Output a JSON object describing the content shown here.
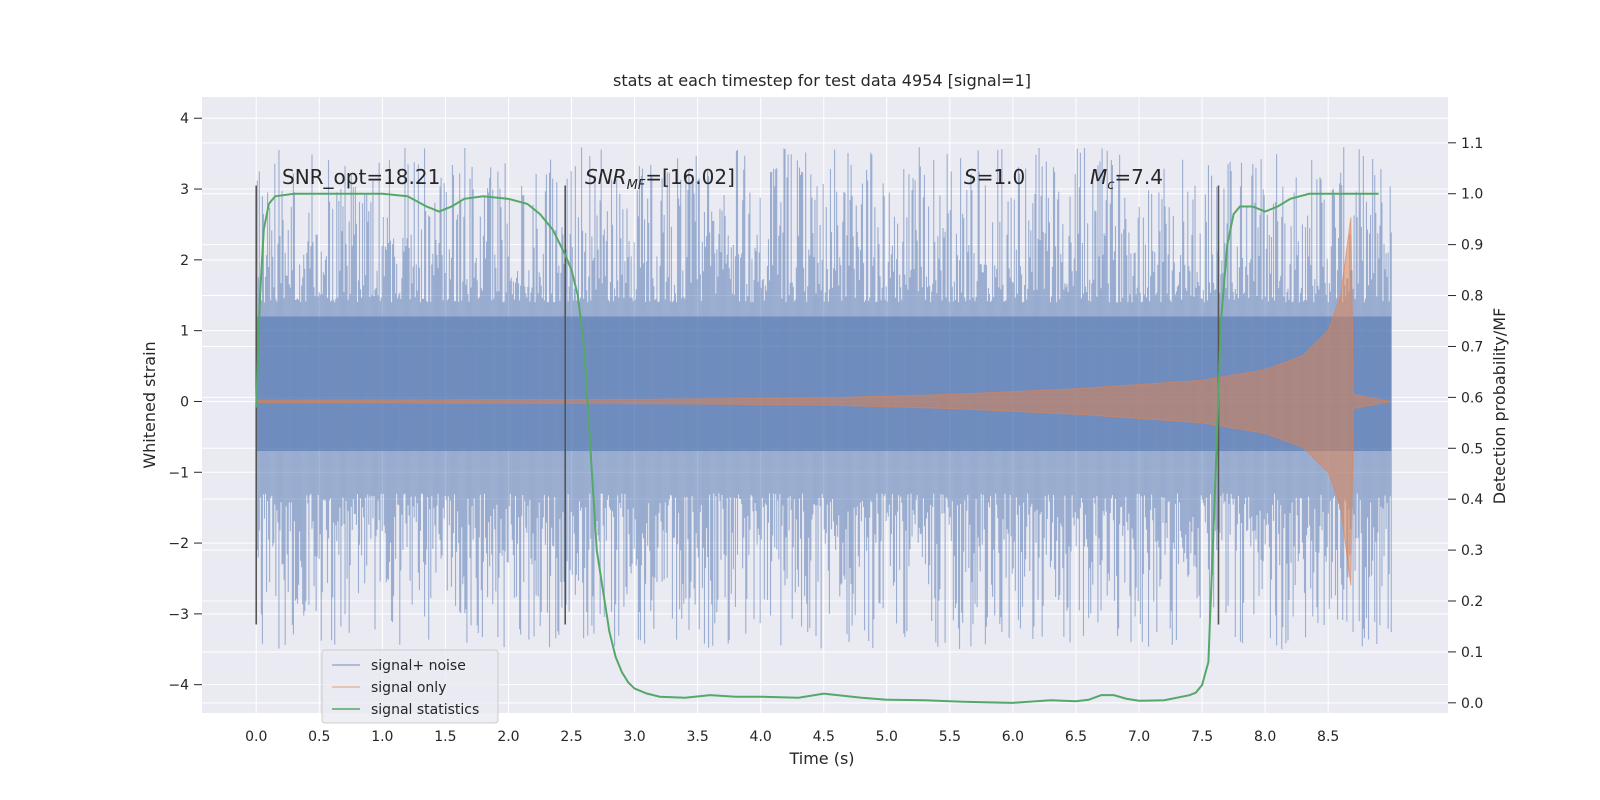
{
  "chart_data": {
    "type": "line",
    "title": "stats at each timestep for test data 4954 [signal=1]",
    "xlabel": "Time (s)",
    "ylabel": "Whitened strain",
    "ylabel_right": "Detection probability/MF",
    "xlim": [
      -0.43,
      9.45
    ],
    "ylim": [
      -4.4,
      4.3
    ],
    "ylim_right": [
      -0.02,
      1.19
    ],
    "grid": true,
    "legend_position": "lower-left",
    "x_ticks": [
      0.0,
      0.5,
      1.0,
      1.5,
      2.0,
      2.5,
      3.0,
      3.5,
      4.0,
      4.5,
      5.0,
      5.5,
      6.0,
      6.5,
      7.0,
      7.5,
      8.0,
      8.5
    ],
    "x_tick_labels": [
      "0.0",
      "0.5",
      "1.0",
      "1.5",
      "2.0",
      "2.5",
      "3.0",
      "3.5",
      "4.0",
      "4.5",
      "5.0",
      "5.5",
      "6.0",
      "6.5",
      "7.0",
      "7.5",
      "8.0",
      "8.5"
    ],
    "y_ticks": [
      4,
      3,
      2,
      1,
      0,
      -1,
      -2,
      -3,
      -4
    ],
    "y_tick_labels": [
      "4",
      "3",
      "2",
      "1",
      "0",
      "−1",
      "−2",
      "−3",
      "−4"
    ],
    "y_right_ticks": [
      1.1,
      1.0,
      0.9,
      0.8,
      0.7,
      0.6,
      0.5,
      0.4,
      0.3,
      0.2,
      0.1,
      0.0
    ],
    "y_right_tick_labels": [
      "1.1",
      "1.0",
      "0.9",
      "0.8",
      "0.7",
      "0.6",
      "0.5",
      "0.4",
      "0.3",
      "0.2",
      "0.1",
      "0.0"
    ],
    "annotations": {
      "snr_opt": "SNR_opt=18.21",
      "snr_mf_base": "SNR",
      "snr_mf_sub": "MF",
      "snr_mf_rest": "=[16.02]",
      "s_base": "S",
      "s_rest": "=1.0",
      "mc_base": "M",
      "mc_sub": "c",
      "mc_rest": "=7.4"
    },
    "vertical_markers_x": [
      0.0,
      2.45,
      7.63
    ],
    "series": [
      {
        "name": "signal+ noise",
        "color": "#4c72b0",
        "noise_time_range": [
          0.0,
          9.0
        ],
        "noise_peak_max": 3.9,
        "noise_peak_min": -4.0
      },
      {
        "name": "signal only",
        "color": "#dd8452",
        "chirp_envelope": [
          [
            0.0,
            0.02
          ],
          [
            3.0,
            0.03
          ],
          [
            4.5,
            0.05
          ],
          [
            5.5,
            0.1
          ],
          [
            6.5,
            0.18
          ],
          [
            7.5,
            0.3
          ],
          [
            8.0,
            0.45
          ],
          [
            8.3,
            0.65
          ],
          [
            8.5,
            1.0
          ],
          [
            8.6,
            1.5
          ],
          [
            8.65,
            2.2
          ],
          [
            8.68,
            2.6
          ],
          [
            8.7,
            0.1
          ],
          [
            9.0,
            0.0
          ]
        ]
      },
      {
        "name": "signal statistics",
        "color": "#55a868",
        "points": [
          [
            0.0,
            0.58
          ],
          [
            0.03,
            0.8
          ],
          [
            0.06,
            0.93
          ],
          [
            0.1,
            0.98
          ],
          [
            0.15,
            0.995
          ],
          [
            0.3,
            1.0
          ],
          [
            0.6,
            1.0
          ],
          [
            1.0,
            1.0
          ],
          [
            1.2,
            0.995
          ],
          [
            1.35,
            0.975
          ],
          [
            1.45,
            0.965
          ],
          [
            1.55,
            0.975
          ],
          [
            1.65,
            0.99
          ],
          [
            1.8,
            0.995
          ],
          [
            2.0,
            0.99
          ],
          [
            2.15,
            0.98
          ],
          [
            2.25,
            0.96
          ],
          [
            2.35,
            0.93
          ],
          [
            2.45,
            0.88
          ],
          [
            2.5,
            0.85
          ],
          [
            2.55,
            0.8
          ],
          [
            2.6,
            0.7
          ],
          [
            2.65,
            0.5
          ],
          [
            2.7,
            0.3
          ],
          [
            2.8,
            0.14
          ],
          [
            2.85,
            0.09
          ],
          [
            2.9,
            0.06
          ],
          [
            2.95,
            0.04
          ],
          [
            3.0,
            0.028
          ],
          [
            3.1,
            0.018
          ],
          [
            3.2,
            0.012
          ],
          [
            3.4,
            0.01
          ],
          [
            3.6,
            0.015
          ],
          [
            3.8,
            0.012
          ],
          [
            4.0,
            0.012
          ],
          [
            4.3,
            0.01
          ],
          [
            4.5,
            0.018
          ],
          [
            4.8,
            0.01
          ],
          [
            5.0,
            0.006
          ],
          [
            5.3,
            0.005
          ],
          [
            5.6,
            0.002
          ],
          [
            6.0,
            0.0
          ],
          [
            6.3,
            0.005
          ],
          [
            6.5,
            0.003
          ],
          [
            6.6,
            0.006
          ],
          [
            6.7,
            0.015
          ],
          [
            6.8,
            0.015
          ],
          [
            6.9,
            0.008
          ],
          [
            7.0,
            0.004
          ],
          [
            7.2,
            0.005
          ],
          [
            7.4,
            0.015
          ],
          [
            7.45,
            0.02
          ],
          [
            7.5,
            0.035
          ],
          [
            7.55,
            0.08
          ],
          [
            7.6,
            0.4
          ],
          [
            7.65,
            0.75
          ],
          [
            7.7,
            0.9
          ],
          [
            7.75,
            0.96
          ],
          [
            7.8,
            0.975
          ],
          [
            7.9,
            0.975
          ],
          [
            8.0,
            0.965
          ],
          [
            8.1,
            0.975
          ],
          [
            8.2,
            0.99
          ],
          [
            8.35,
            1.0
          ],
          [
            8.6,
            1.0
          ],
          [
            8.9,
            1.0
          ]
        ]
      }
    ]
  }
}
